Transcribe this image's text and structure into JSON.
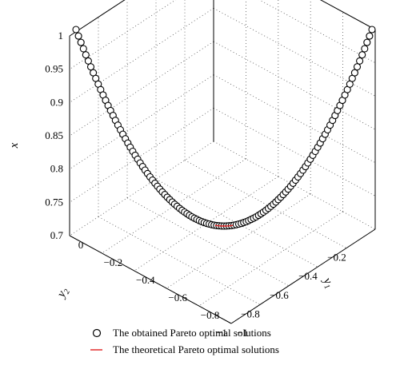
{
  "chart_data": {
    "type": "scatter",
    "projection": "3d",
    "axes": {
      "x": {
        "label": "x",
        "ticks": [
          "0.7",
          "0.75",
          "0.8",
          "0.85",
          "0.9",
          "0.95",
          "1"
        ],
        "range": [
          0.7,
          1
        ]
      },
      "y2": {
        "label_base": "y",
        "label_sub": "2",
        "ticks": [
          "−0.2",
          "−0.4",
          "−0.6",
          "−0.8",
          "−1"
        ],
        "range": [
          0,
          -1
        ]
      },
      "y1": {
        "label_base": "y",
        "label_sub": "1",
        "ticks": [
          "0",
          "−0.2",
          "−0.4",
          "−0.6",
          "−0.8",
          "−1"
        ],
        "range": [
          0,
          -1
        ]
      }
    },
    "grid": true,
    "legend_position": "bottom",
    "series": [
      {
        "name": "The obtained Pareto optimal solutions",
        "marker": "open-circle",
        "color": "#000000",
        "description_points": [
          {
            "y1": 0.0,
            "y2": -1.0,
            "x": 1.0
          },
          {
            "y1": -0.1,
            "y2": -0.9,
            "x": 0.9
          },
          {
            "y1": -0.2,
            "y2": -0.8,
            "x": 0.82
          },
          {
            "y1": -0.3,
            "y2": -0.7,
            "x": 0.76
          },
          {
            "y1": -0.4,
            "y2": -0.6,
            "x": 0.72
          },
          {
            "y1": -0.5,
            "y2": -0.5,
            "x": 0.7
          },
          {
            "y1": -0.6,
            "y2": -0.4,
            "x": 0.72
          },
          {
            "y1": -0.7,
            "y2": -0.3,
            "x": 0.76
          },
          {
            "y1": -0.8,
            "y2": -0.2,
            "x": 0.82
          },
          {
            "y1": -0.9,
            "y2": -0.1,
            "x": 0.9
          },
          {
            "y1": -1.0,
            "y2": 0.0,
            "x": 1.0
          }
        ]
      },
      {
        "name": "The theoretical Pareto optimal solutions",
        "marker": "line",
        "color": "#e02020"
      }
    ]
  }
}
